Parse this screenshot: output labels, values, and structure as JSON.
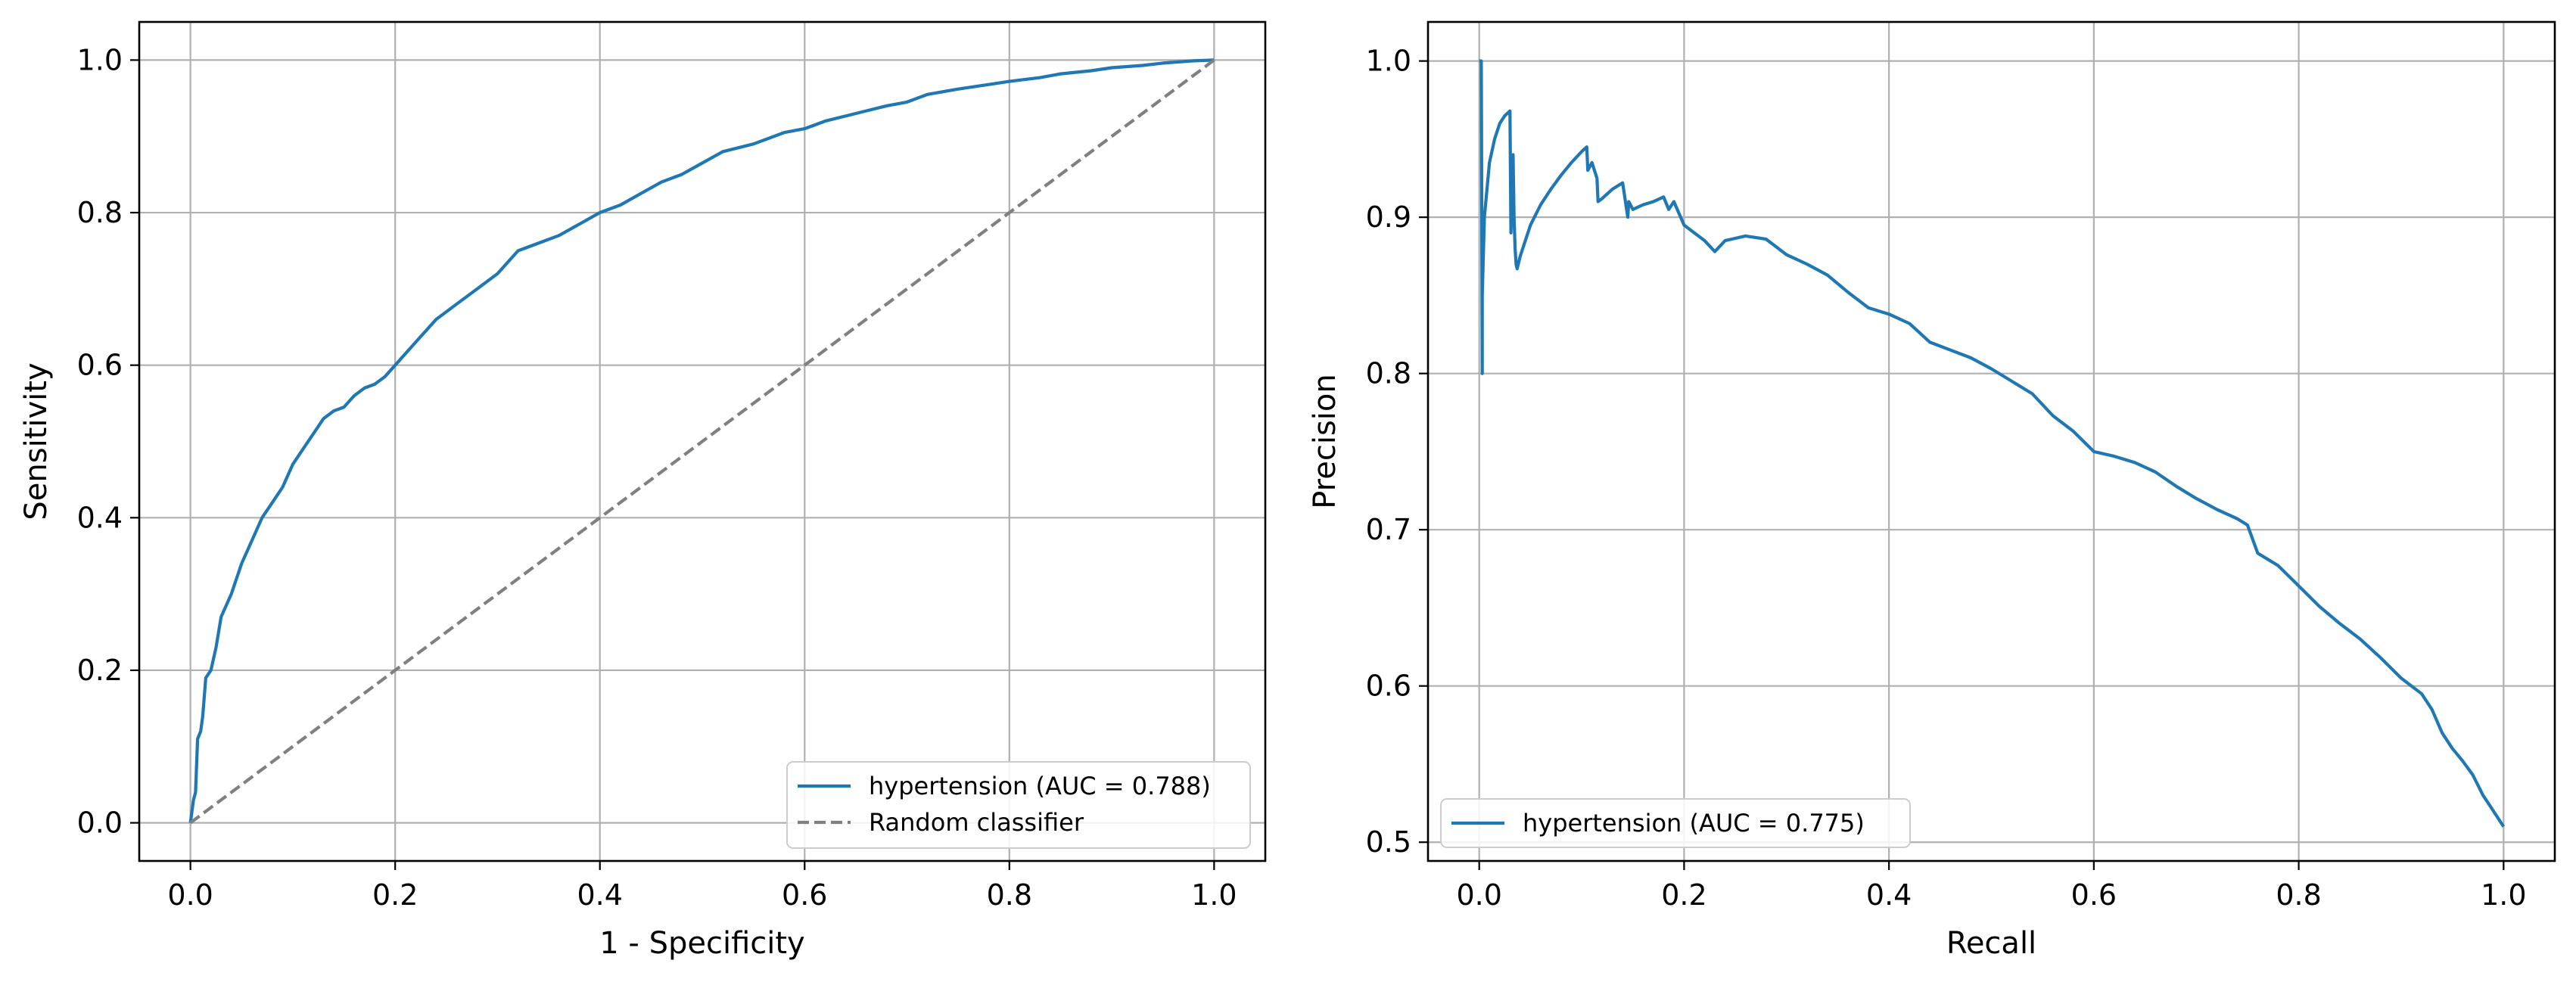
{
  "chart_data": [
    {
      "type": "line",
      "xlabel": "1 - Specificity",
      "ylabel": "Sensitivity",
      "xlim": [
        -0.05,
        1.05
      ],
      "ylim": [
        -0.05,
        1.05
      ],
      "xticks": [
        "0.0",
        "0.2",
        "0.4",
        "0.6",
        "0.8",
        "1.0"
      ],
      "yticks": [
        "0.0",
        "0.2",
        "0.4",
        "0.6",
        "0.8",
        "1.0"
      ],
      "grid": true,
      "legend_position": "lower-right",
      "series": [
        {
          "name": "hypertension (AUC = 0.788)",
          "color": "#1f77b4",
          "style": "solid",
          "x": [
            0,
            0.003,
            0.005,
            0.007,
            0.01,
            0.012,
            0.015,
            0.02,
            0.025,
            0.03,
            0.04,
            0.05,
            0.06,
            0.07,
            0.08,
            0.09,
            0.1,
            0.11,
            0.12,
            0.13,
            0.14,
            0.15,
            0.16,
            0.17,
            0.18,
            0.19,
            0.2,
            0.22,
            0.24,
            0.26,
            0.28,
            0.3,
            0.32,
            0.34,
            0.36,
            0.38,
            0.4,
            0.42,
            0.44,
            0.46,
            0.48,
            0.5,
            0.52,
            0.55,
            0.58,
            0.6,
            0.62,
            0.65,
            0.68,
            0.7,
            0.72,
            0.75,
            0.78,
            0.8,
            0.83,
            0.85,
            0.88,
            0.9,
            0.93,
            0.95,
            0.98,
            1.0
          ],
          "y": [
            0,
            0.03,
            0.04,
            0.11,
            0.12,
            0.14,
            0.19,
            0.2,
            0.23,
            0.27,
            0.3,
            0.34,
            0.37,
            0.4,
            0.42,
            0.44,
            0.47,
            0.49,
            0.51,
            0.53,
            0.54,
            0.545,
            0.56,
            0.57,
            0.575,
            0.585,
            0.6,
            0.63,
            0.66,
            0.68,
            0.7,
            0.72,
            0.75,
            0.76,
            0.77,
            0.785,
            0.8,
            0.81,
            0.825,
            0.84,
            0.85,
            0.865,
            0.88,
            0.89,
            0.905,
            0.91,
            0.92,
            0.93,
            0.94,
            0.945,
            0.955,
            0.962,
            0.968,
            0.972,
            0.977,
            0.982,
            0.986,
            0.99,
            0.993,
            0.996,
            0.999,
            1.0
          ]
        },
        {
          "name": "Random classifier",
          "color": "#808080",
          "style": "dashed",
          "x": [
            0,
            1
          ],
          "y": [
            0,
            1
          ]
        }
      ]
    },
    {
      "type": "line",
      "xlabel": "Recall",
      "ylabel": "Precision",
      "xlim": [
        -0.05,
        1.05
      ],
      "ylim": [
        0.488,
        1.025
      ],
      "xticks": [
        "0.0",
        "0.2",
        "0.4",
        "0.6",
        "0.8",
        "1.0"
      ],
      "yticks": [
        "0.5",
        "0.6",
        "0.7",
        "0.8",
        "0.9",
        "1.0"
      ],
      "grid": true,
      "legend_position": "lower-left",
      "series": [
        {
          "name": "hypertension (AUC = 0.775)",
          "color": "#1f77b4",
          "style": "solid",
          "x": [
            0.0,
            0.002,
            0.003,
            0.003,
            0.005,
            0.01,
            0.015,
            0.02,
            0.025,
            0.03,
            0.031,
            0.033,
            0.034,
            0.035,
            0.036,
            0.037,
            0.04,
            0.05,
            0.06,
            0.07,
            0.08,
            0.09,
            0.1,
            0.105,
            0.106,
            0.11,
            0.115,
            0.116,
            0.12,
            0.13,
            0.14,
            0.145,
            0.146,
            0.15,
            0.16,
            0.17,
            0.18,
            0.185,
            0.19,
            0.2,
            0.21,
            0.22,
            0.23,
            0.24,
            0.26,
            0.28,
            0.3,
            0.32,
            0.34,
            0.36,
            0.38,
            0.4,
            0.42,
            0.44,
            0.46,
            0.48,
            0.5,
            0.52,
            0.54,
            0.56,
            0.58,
            0.6,
            0.62,
            0.64,
            0.66,
            0.68,
            0.7,
            0.72,
            0.74,
            0.75,
            0.76,
            0.78,
            0.8,
            0.82,
            0.84,
            0.86,
            0.88,
            0.9,
            0.92,
            0.93,
            0.94,
            0.95,
            0.96,
            0.97,
            0.98,
            0.99,
            1.0
          ],
          "y": [
            1.0,
            1.0,
            0.8,
            0.85,
            0.9,
            0.935,
            0.95,
            0.96,
            0.965,
            0.968,
            0.89,
            0.94,
            0.9,
            0.88,
            0.87,
            0.867,
            0.875,
            0.895,
            0.908,
            0.918,
            0.927,
            0.935,
            0.942,
            0.945,
            0.93,
            0.935,
            0.925,
            0.91,
            0.912,
            0.918,
            0.922,
            0.9,
            0.91,
            0.905,
            0.908,
            0.91,
            0.913,
            0.905,
            0.91,
            0.895,
            0.89,
            0.885,
            0.878,
            0.885,
            0.888,
            0.886,
            0.876,
            0.87,
            0.863,
            0.852,
            0.842,
            0.838,
            0.832,
            0.82,
            0.815,
            0.81,
            0.803,
            0.795,
            0.787,
            0.773,
            0.763,
            0.75,
            0.747,
            0.743,
            0.737,
            0.728,
            0.72,
            0.713,
            0.707,
            0.703,
            0.685,
            0.677,
            0.664,
            0.651,
            0.64,
            0.63,
            0.618,
            0.605,
            0.595,
            0.585,
            0.57,
            0.56,
            0.552,
            0.543,
            0.53,
            0.52,
            0.51
          ]
        }
      ]
    }
  ]
}
